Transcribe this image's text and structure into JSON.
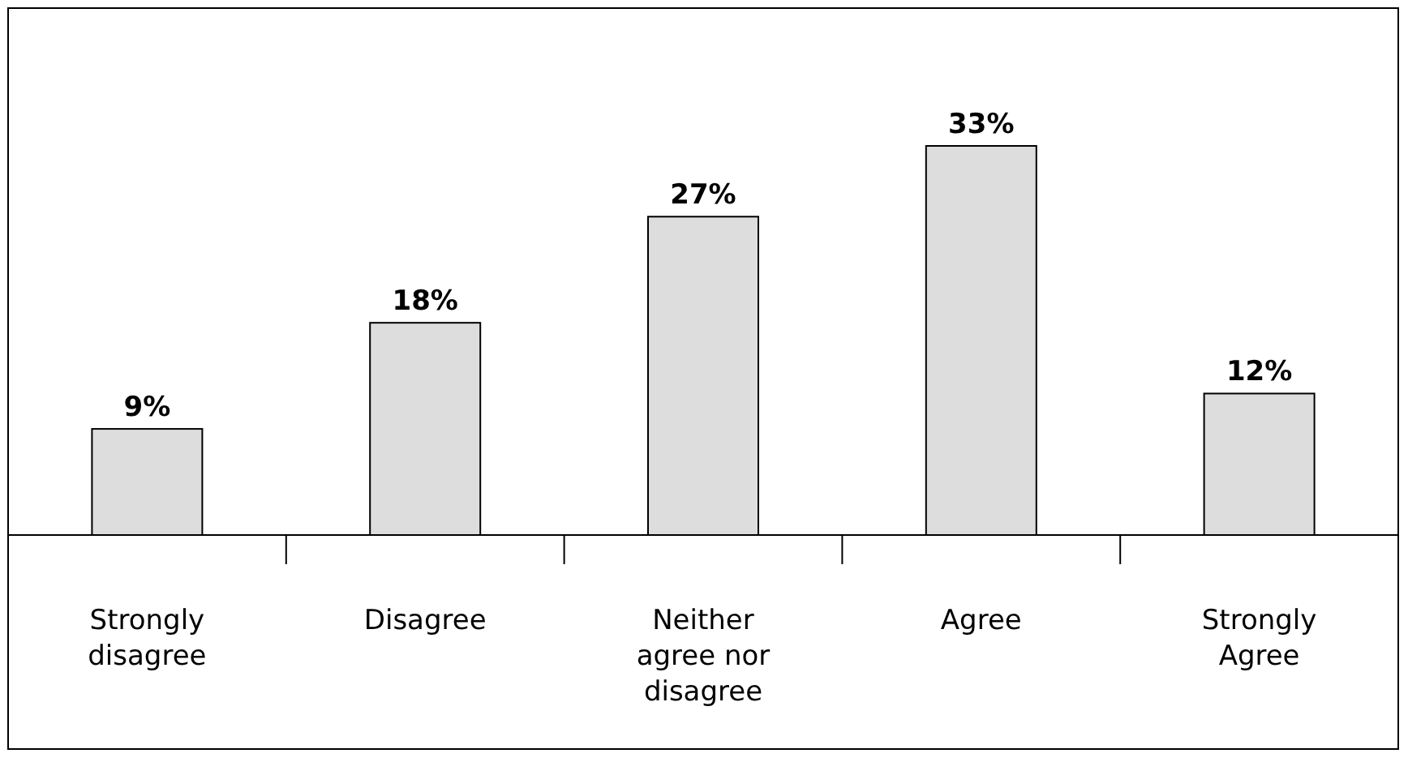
{
  "chart_data": {
    "type": "bar",
    "categories": [
      "Strongly disagree",
      "Disagree",
      "Neither agree nor disagree",
      "Agree",
      "Strongly Agree"
    ],
    "values": [
      9,
      18,
      27,
      33,
      12
    ],
    "value_labels": [
      "9%",
      "18%",
      "27%",
      "33%",
      "12%"
    ],
    "color": "#dddddd"
  }
}
